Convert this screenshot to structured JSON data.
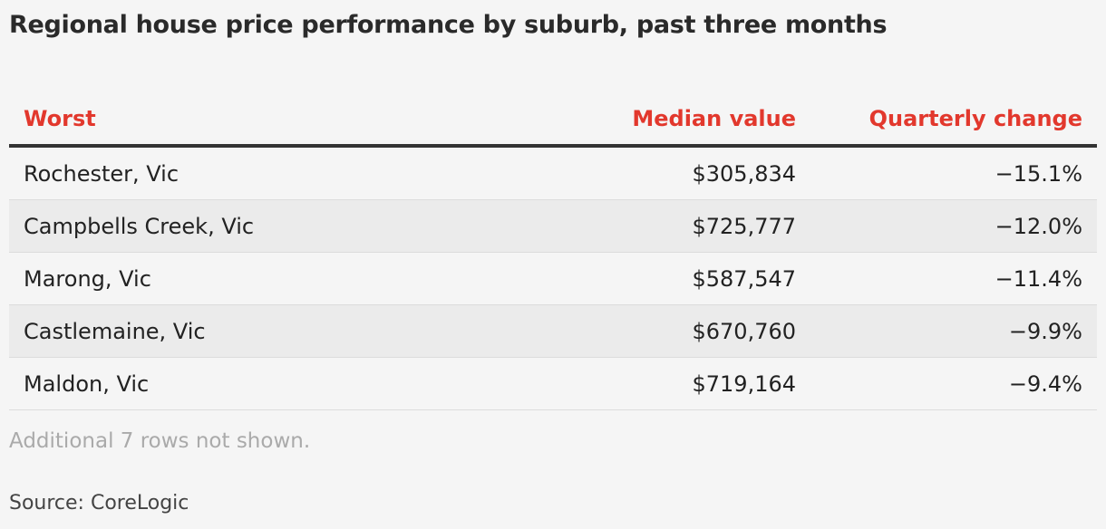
{
  "title": "Regional house price performance by suburb, past three months",
  "chart_data": {
    "type": "table",
    "columns": [
      "Worst",
      "Median value",
      "Quarterly change"
    ],
    "rows": [
      [
        "Rochester, Vic",
        "$305,834",
        "−15.1%"
      ],
      [
        "Campbells Creek, Vic",
        "$725,777",
        "−12.0%"
      ],
      [
        "Marong, Vic",
        "$587,547",
        "−11.4%"
      ],
      [
        "Castlemaine, Vic",
        "$670,760",
        "−9.9%"
      ],
      [
        "Maldon, Vic",
        "$719,164",
        "−9.4%"
      ]
    ]
  },
  "note": "Additional 7 rows not shown.",
  "source": "Source: CoreLogic",
  "colors": {
    "header_text": "#e2382d",
    "background": "#f5f5f5",
    "alt_row": "#ebebeb"
  }
}
